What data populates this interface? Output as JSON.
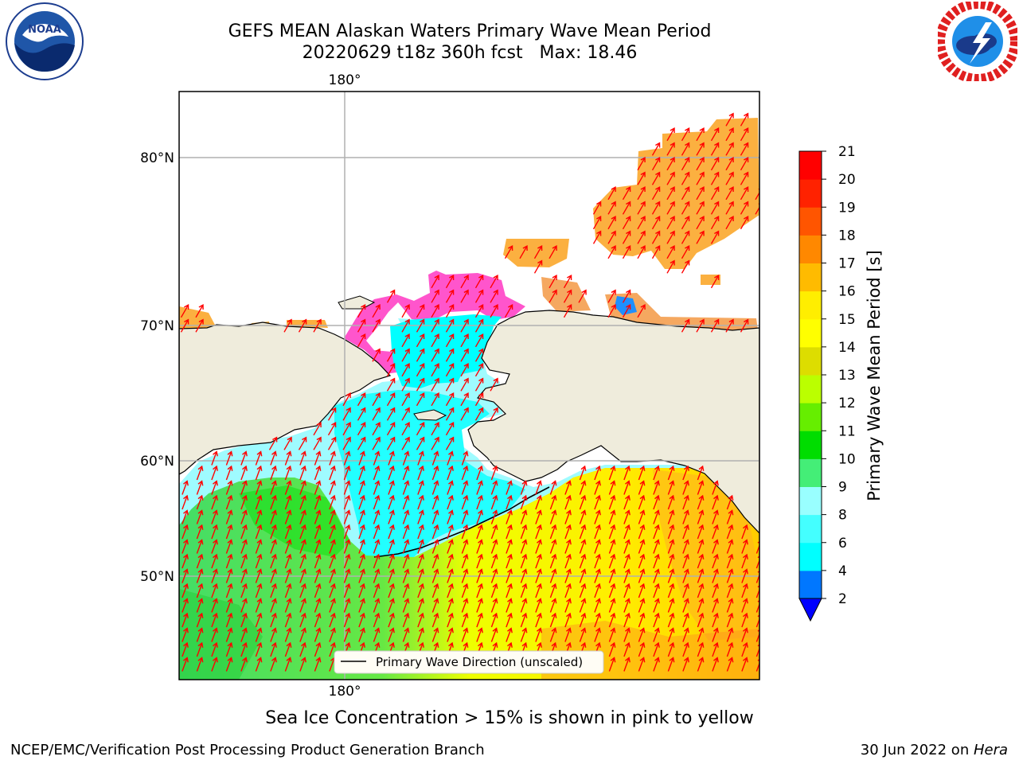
{
  "header": {
    "title_line1": "GEFS MEAN Alaskan Waters Primary Wave Mean Period",
    "title_line2": "20220629 t18z 360h fcst   Max: 18.46"
  },
  "map": {
    "lon_labels": [
      "180°",
      "180°"
    ],
    "lat_labels": [
      "80°N",
      "70°N",
      "60°N",
      "50°N"
    ],
    "legend_label": "Primary Wave Direction (unscaled)",
    "colors": {
      "land": "#efecdc",
      "grid": "#b0b0b0",
      "arrow": "#ff0000"
    }
  },
  "colorbar": {
    "label": "Primary Wave Mean Period [s]",
    "ticks": [
      "2",
      "4",
      "6",
      "8",
      "9",
      "10",
      "11",
      "12",
      "13",
      "14",
      "15",
      "16",
      "17",
      "18",
      "19",
      "20",
      "21"
    ],
    "colors": [
      "#0000ff",
      "#0077ff",
      "#00ffff",
      "#44ffff",
      "#99ffff",
      "#44ee77",
      "#00dd00",
      "#66ee00",
      "#bbff00",
      "#dddd00",
      "#ffff00",
      "#ffee00",
      "#ffbb00",
      "#ff8800",
      "#ff5500",
      "#ff2200",
      "#ff0000"
    ]
  },
  "note": "Sea Ice Concentration > 15% is shown in pink to yellow",
  "footer": {
    "left": "NCEP/EMC/Verification Post Processing Product Generation Branch",
    "date": "30 Jun 2022 on ",
    "host": "Hera"
  },
  "logos": {
    "noaa_text": "NOAA",
    "noaa_icon": "noaa-logo-icon",
    "nws_icon": "nws-logo-icon"
  }
}
